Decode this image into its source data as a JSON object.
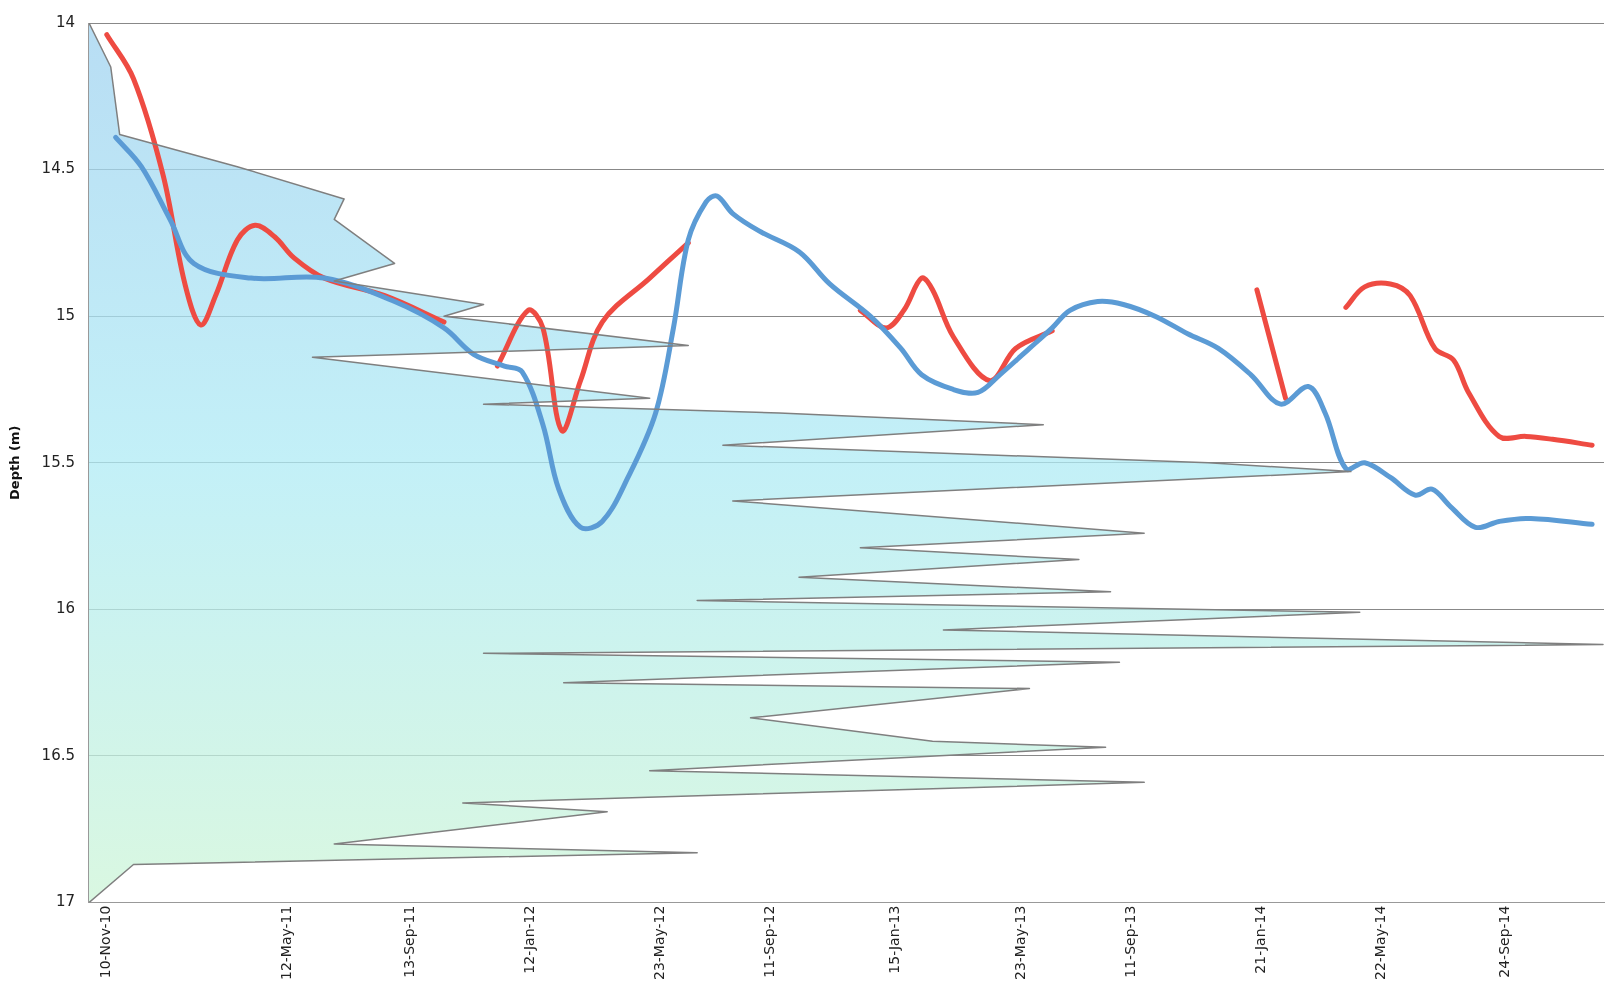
{
  "chart_data": {
    "type": "line",
    "ylabel": "Depth (m)",
    "xlim": [
      "2010-10-23",
      "2015-01-02"
    ],
    "xticks": [
      {
        "value": "2010-11-10",
        "label": "10-Nov-10"
      },
      {
        "value": "2011-05-12",
        "label": "12-May-11"
      },
      {
        "value": "2011-09-13",
        "label": "13-Sep-11"
      },
      {
        "value": "2012-01-12",
        "label": "12-Jan-12"
      },
      {
        "value": "2012-05-23",
        "label": "23-May-12"
      },
      {
        "value": "2012-09-11",
        "label": "11-Sep-12"
      },
      {
        "value": "2013-01-15",
        "label": "15-Jan-13"
      },
      {
        "value": "2013-05-23",
        "label": "23-May-13"
      },
      {
        "value": "2013-09-11",
        "label": "11-Sep-13"
      },
      {
        "value": "2014-01-21",
        "label": "21-Jan-14"
      },
      {
        "value": "2014-05-22",
        "label": "22-May-14"
      },
      {
        "value": "2014-09-24",
        "label": "24-Sep-14"
      }
    ],
    "ylim": [
      17,
      14
    ],
    "yticks": [
      14,
      14.5,
      15,
      15.5,
      16,
      16.5,
      17
    ],
    "grid": "y",
    "legend": false,
    "marker": "none",
    "series": [
      {
        "type": "area",
        "color": "#7f7f7f",
        "x": [
          "2010-10-23",
          "2010-11-14",
          "2010-11-23",
          "2011-03-22",
          "2011-07-08",
          "2011-06-28",
          "2011-08-28",
          "2011-06-28",
          "2011-11-26",
          "2011-10-17",
          "2012-06-20",
          "2011-06-06",
          "2012-05-12",
          "2011-11-26",
          "2012-09-20",
          "2013-06-14",
          "2012-07-25",
          "2013-11-28",
          "2014-04-21",
          "2012-08-04",
          "2013-09-24",
          "2012-12-11",
          "2013-07-20",
          "2012-10-10",
          "2013-08-21",
          "2012-06-29",
          "2014-04-30",
          "2013-03-05",
          "2015-01-01",
          "2011-11-26",
          "2013-08-30",
          "2012-02-15",
          "2013-05-31",
          "2012-08-22",
          "2013-02-22",
          "2013-08-16",
          "2012-05-12",
          "2013-09-24",
          "2011-11-05",
          "2012-03-30",
          "2011-06-28",
          "2012-06-29",
          "2010-12-07",
          "2010-10-23"
        ],
        "values": [
          14.0,
          14.15,
          14.38,
          14.49,
          14.6,
          14.67,
          14.82,
          14.88,
          14.96,
          15.0,
          15.1,
          15.14,
          15.28,
          15.3,
          15.33,
          15.37,
          15.44,
          15.5,
          15.53,
          15.63,
          15.74,
          15.79,
          15.83,
          15.89,
          15.94,
          15.97,
          16.01,
          16.07,
          16.12,
          16.15,
          16.18,
          16.25,
          16.27,
          16.37,
          16.45,
          16.47,
          16.55,
          16.59,
          16.66,
          16.69,
          16.8,
          16.83,
          16.87,
          17.0
        ]
      },
      {
        "type": "line",
        "color": "#5b9bd5",
        "x": [
          "2010-11-19",
          "2010-12-15",
          "2011-01-13",
          "2011-02-06",
          "2011-04-05",
          "2011-06-18",
          "2011-08-28",
          "2011-10-17",
          "2011-11-16",
          "2011-12-17",
          "2012-01-04",
          "2012-01-25",
          "2012-02-10",
          "2012-03-03",
          "2012-03-25",
          "2012-04-20",
          "2012-05-18",
          "2012-06-05",
          "2012-06-20",
          "2012-07-08",
          "2012-07-19",
          "2012-08-04",
          "2012-08-31",
          "2012-10-10",
          "2012-11-10",
          "2012-12-21",
          "2013-01-21",
          "2013-02-11",
          "2013-03-15",
          "2013-04-09",
          "2013-05-01",
          "2013-05-31",
          "2013-06-23",
          "2013-07-11",
          "2013-08-08",
          "2013-09-03",
          "2013-10-05",
          "2013-11-07",
          "2013-12-08",
          "2014-01-10",
          "2014-02-09",
          "2014-03-09",
          "2014-03-26",
          "2014-04-16",
          "2014-05-05",
          "2014-05-31",
          "2014-06-25",
          "2014-07-12",
          "2014-07-31",
          "2014-08-25",
          "2014-09-18",
          "2014-10-20",
          "2014-12-21"
        ],
        "values": [
          14.39,
          14.49,
          14.67,
          14.82,
          14.87,
          14.87,
          14.95,
          15.04,
          15.13,
          15.17,
          15.19,
          15.37,
          15.59,
          15.72,
          15.7,
          15.55,
          15.33,
          15.04,
          14.74,
          14.61,
          14.59,
          14.65,
          14.71,
          14.78,
          14.89,
          15.0,
          15.11,
          15.2,
          15.25,
          15.26,
          15.2,
          15.11,
          15.04,
          14.98,
          14.95,
          14.96,
          15.0,
          15.06,
          15.11,
          15.2,
          15.3,
          15.24,
          15.33,
          15.52,
          15.5,
          15.55,
          15.61,
          15.59,
          15.65,
          15.72,
          15.7,
          15.69,
          15.71
        ]
      },
      {
        "type": "line",
        "color": "#ee4b42",
        "x": [
          "2010-11-10",
          "2010-12-07",
          "2011-01-06",
          "2011-01-28",
          "2011-02-13",
          "2011-02-28",
          "2011-03-22",
          "2011-04-09",
          "2011-04-29",
          "2011-05-18",
          "2011-06-18",
          "2011-08-18",
          "2011-10-17",
          "2011-11-14",
          "2011-12-10",
          "2012-01-10",
          "2012-01-25",
          "2012-02-13",
          "2012-03-03",
          "2012-03-25",
          "2012-05-12",
          "2012-06-20",
          "2012-09-09",
          "2012-12-11",
          "2013-01-06",
          "2013-01-24",
          "2013-02-11",
          "2013-02-22",
          "2013-03-15",
          "2013-04-21",
          "2013-05-17",
          "2013-06-23",
          "2013-09-24",
          "2014-01-16",
          "2014-02-14",
          "2014-03-16",
          "2014-04-16",
          "2014-05-05",
          "2014-05-31",
          "2014-06-20",
          "2014-07-15",
          "2014-08-03",
          "2014-08-18",
          "2014-09-18",
          "2014-10-15",
          "2014-11-11",
          "2014-12-21"
        ],
        "values": [
          14.04,
          14.19,
          14.52,
          14.89,
          15.03,
          14.93,
          14.74,
          14.69,
          14.73,
          14.8,
          14.87,
          14.93,
          15.02,
          null,
          15.17,
          14.98,
          15.04,
          15.39,
          15.22,
          15.02,
          14.87,
          14.75,
          null,
          14.98,
          15.04,
          14.98,
          14.87,
          14.91,
          15.07,
          15.22,
          15.11,
          15.05,
          null,
          14.91,
          15.28,
          null,
          14.97,
          14.9,
          14.89,
          14.93,
          15.11,
          15.15,
          15.26,
          15.41,
          15.41,
          15.42,
          15.44
        ]
      }
    ]
  }
}
